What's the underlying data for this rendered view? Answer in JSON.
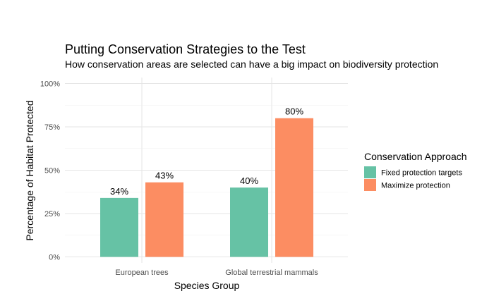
{
  "chart_data": {
    "type": "bar",
    "title": "Putting Conservation Strategies to the Test",
    "subtitle": "How conservation areas are selected can have a big impact on biodiversity protection",
    "xlabel": "Species Group",
    "ylabel": "Percentage of Habitat Protected",
    "categories": [
      "European trees",
      "Global terrestrial mammals"
    ],
    "series": [
      {
        "name": "Fixed protection targets",
        "values": [
          34,
          40
        ],
        "labels": [
          "34%",
          "40%"
        ],
        "color": "#66C2A5"
      },
      {
        "name": "Maximize protection",
        "values": [
          43,
          80
        ],
        "labels": [
          "43%",
          "80%"
        ],
        "color": "#FC8D62"
      }
    ],
    "ylim": [
      0,
      100
    ],
    "yticks": [
      0,
      25,
      50,
      75,
      100
    ],
    "ytick_labels": [
      "0%",
      "25%",
      "50%",
      "75%",
      "100%"
    ],
    "grid": true,
    "legend": {
      "title": "Conservation Approach",
      "position": "right"
    }
  }
}
